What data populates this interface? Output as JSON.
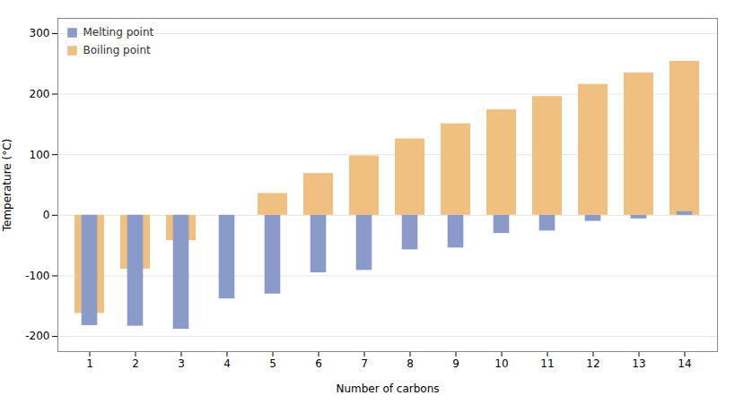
{
  "chart_data": {
    "type": "bar",
    "categories": [
      1,
      2,
      3,
      4,
      5,
      6,
      7,
      8,
      9,
      10,
      11,
      12,
      13,
      14
    ],
    "series": [
      {
        "name": "Melting point",
        "color": "#8a9bc9",
        "values": [
          -182,
          -183,
          -188,
          -138,
          -130,
          -95,
          -91,
          -57,
          -54,
          -30,
          -26,
          -10,
          -6,
          6
        ]
      },
      {
        "name": "Boiling point",
        "color": "#f0c080",
        "values": [
          -162,
          -89,
          -42,
          0,
          36,
          69,
          98,
          126,
          151,
          174,
          196,
          216,
          235,
          254
        ]
      }
    ],
    "xlabel": "Number of carbons",
    "ylabel": "Temperature (°C)",
    "ylim": [
      -225,
      325
    ],
    "yticks": [
      -200,
      -100,
      0,
      100,
      200,
      300
    ],
    "grid": true,
    "legend": "upper left"
  }
}
